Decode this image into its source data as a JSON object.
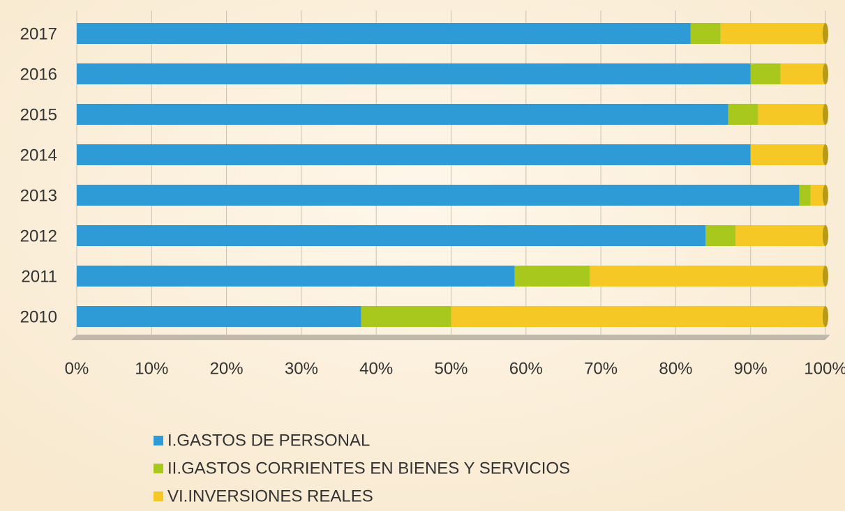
{
  "chart_data": {
    "type": "stacked_barh",
    "categories": [
      "2017",
      "2016",
      "2015",
      "2014",
      "2013",
      "2012",
      "2011",
      "2010"
    ],
    "series": [
      {
        "name": "I.GASTOS DE PERSONAL",
        "color": "#2e9bd6",
        "values": [
          82,
          90,
          87,
          90,
          96.5,
          84,
          58.5,
          38
        ]
      },
      {
        "name": "II.GASTOS CORRIENTES EN BIENES Y SERVICIOS",
        "color": "#a8c81e",
        "values": [
          4,
          4,
          4,
          0,
          1.5,
          4,
          10,
          12
        ]
      },
      {
        "name": "VI.INVERSIONES REALES",
        "color": "#f5c825",
        "values": [
          14,
          6,
          9,
          10,
          2,
          12,
          31.5,
          50
        ]
      }
    ],
    "xlim": [
      0,
      100
    ],
    "xticks": [
      {
        "value": 0,
        "label": "0%"
      },
      {
        "value": 10,
        "label": "10%"
      },
      {
        "value": 20,
        "label": "20%"
      },
      {
        "value": 30,
        "label": "30%"
      },
      {
        "value": 40,
        "label": "40%"
      },
      {
        "value": 50,
        "label": "50%"
      },
      {
        "value": 60,
        "label": "60%"
      },
      {
        "value": 70,
        "label": "70%"
      },
      {
        "value": 80,
        "label": "80%"
      },
      {
        "value": 90,
        "label": "90%"
      },
      {
        "value": 100,
        "label": "100%"
      }
    ],
    "grid": true
  }
}
